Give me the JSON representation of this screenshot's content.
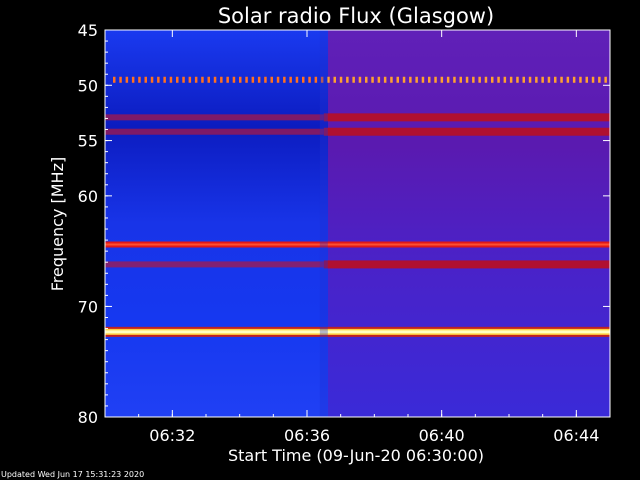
{
  "chart_data": {
    "type": "heatmap",
    "title": "Solar radio Flux (Glasgow)",
    "xlabel": "Start Time (09-Jun-20 06:30:00)",
    "ylabel": "Frequency [MHz]",
    "xlim": [
      "06:30:00",
      "06:45:00"
    ],
    "ylim": [
      45,
      80
    ],
    "y_reversed": true,
    "x_ticks": [
      "06:32",
      "06:36",
      "06:40",
      "06:44"
    ],
    "y_ticks": [
      45,
      50,
      55,
      60,
      70,
      80
    ],
    "colormap": [
      "#000060",
      "#1020d0",
      "#3050ff",
      "#8020a0",
      "#c01020",
      "#ff3010",
      "#ffff80"
    ],
    "background_colors": {
      "before_06_36_30": "#1630e0",
      "after_06_36_30": "#5a1ab8"
    },
    "interference_bands": [
      {
        "frequency": 49.5,
        "level": "dashed-bright"
      },
      {
        "frequency": 52.9,
        "level": "medium"
      },
      {
        "frequency": 54.2,
        "level": "medium"
      },
      {
        "frequency": 64.4,
        "level": "bright"
      },
      {
        "frequency": 66.2,
        "level": "medium"
      },
      {
        "frequency": 72.3,
        "level": "saturated"
      }
    ],
    "transition_time": "06:36:30"
  },
  "footer": {
    "updated": "Updated Wed Jun 17 15:31:23 2020"
  }
}
